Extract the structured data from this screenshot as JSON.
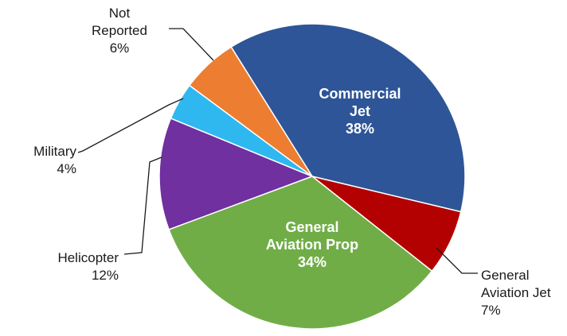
{
  "chart_data": {
    "type": "pie",
    "title": "",
    "slices": [
      {
        "name": "Commercial Jet",
        "label_lines": [
          "Commercial",
          "Jet"
        ],
        "percent_label": "38%",
        "value": 38,
        "color": "#2E5597",
        "label_inside": true
      },
      {
        "name": "General Aviation Jet",
        "label_lines": [
          "General",
          "Aviation Jet"
        ],
        "percent_label": "7%",
        "value": 7,
        "color": "#B30000",
        "label_inside": false
      },
      {
        "name": "General Aviation Prop",
        "label_lines": [
          "General",
          "Aviation Prop"
        ],
        "percent_label": "34%",
        "value": 34,
        "color": "#70AD47",
        "label_inside": true
      },
      {
        "name": "Helicopter",
        "label_lines": [
          "Helicopter"
        ],
        "percent_label": "12%",
        "value": 12,
        "color": "#7030A0",
        "label_inside": false
      },
      {
        "name": "Military",
        "label_lines": [
          "Military"
        ],
        "percent_label": "4%",
        "value": 4,
        "color": "#2FB8F0",
        "label_inside": false
      },
      {
        "name": "Not Reported",
        "label_lines": [
          "Not",
          "Reported"
        ],
        "percent_label": "6%",
        "value": 6,
        "color": "#ED7D31",
        "label_inside": false
      }
    ]
  }
}
